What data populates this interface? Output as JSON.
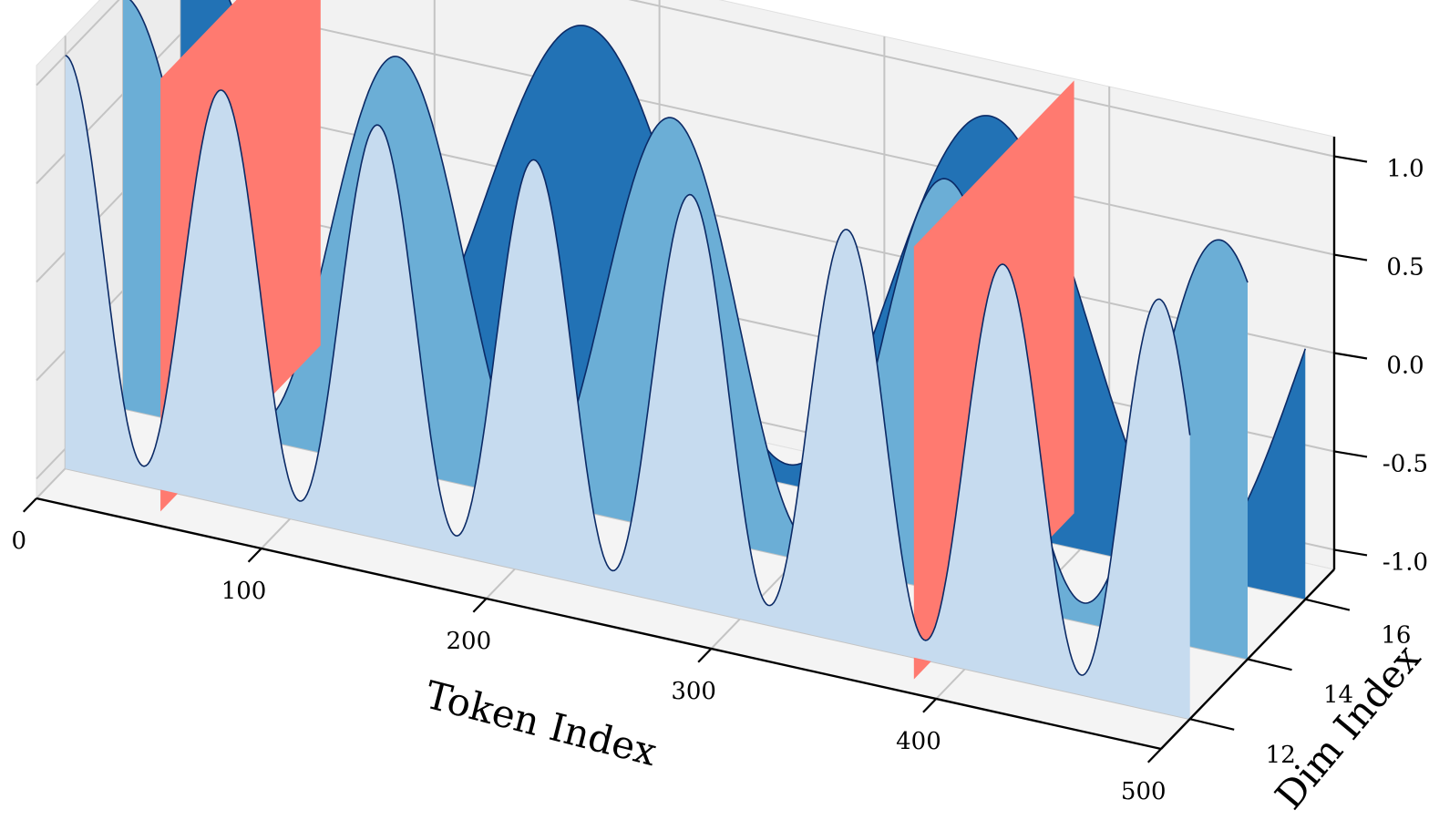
{
  "chart_data": {
    "type": "area",
    "projection": "3d",
    "xlabel": "Token Index",
    "ylabel": "Dim Index",
    "zlabel": "",
    "x_ticks": [
      "0",
      "100",
      "200",
      "300",
      "400",
      "500"
    ],
    "y_ticks": [
      "12",
      "14",
      "16"
    ],
    "z_ticks": [
      "-1.0",
      "-0.5",
      "0.0",
      "0.5",
      "1.0"
    ],
    "xlim": [
      0,
      500
    ],
    "ylim": [
      11,
      17
    ],
    "zlim": [
      -1.1,
      1.1
    ],
    "grid": true,
    "series": [
      {
        "dim": 16,
        "period": 180,
        "phase_deg": 0,
        "x": [
          0,
          500
        ],
        "color": "#2272b5"
      },
      {
        "dim": 14,
        "period": 122,
        "phase_deg": 0,
        "x": [
          0,
          500
        ],
        "color": "#6baed6"
      },
      {
        "dim": 12,
        "period": 69.5,
        "phase_deg": 0,
        "x": [
          0,
          500
        ],
        "color": "#c6dbef"
      }
    ],
    "highlight_planes": [
      {
        "x": 50,
        "color": "#ff7a70"
      },
      {
        "x": 385,
        "color": "#ff7a70"
      }
    ]
  }
}
